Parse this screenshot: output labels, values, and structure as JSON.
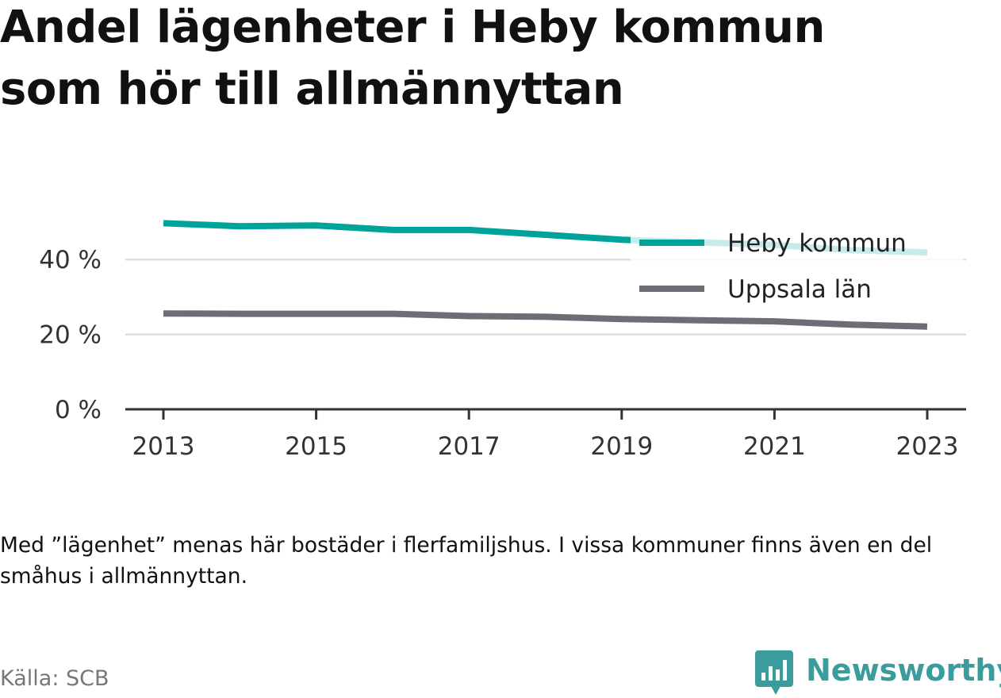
{
  "header": {
    "title_line1": "Andel lägenheter i Heby kommun",
    "title_line2": "som hör till allmännyttan"
  },
  "footer": {
    "note": "Med ”lägenhet” menas här bostäder i flerfamiljshus. I vissa kommuner finns även en del småhus i allmännyttan.",
    "source": "Källa: SCB",
    "brand": "Newsworthy",
    "brand_color": "#3a9c9c"
  },
  "chart_data": {
    "type": "line",
    "title": "Andel lägenheter i Heby kommun som hör till allmännyttan",
    "xlabel": "",
    "ylabel": "",
    "x": [
      2013,
      2014,
      2015,
      2016,
      2017,
      2018,
      2019,
      2020,
      2021,
      2022,
      2023
    ],
    "xticks": [
      2013,
      2015,
      2017,
      2019,
      2021,
      2023
    ],
    "xtick_labels": [
      "2013",
      "2015",
      "2017",
      "2019",
      "2021",
      "2023"
    ],
    "yticks": [
      0,
      20,
      40
    ],
    "ytick_labels": [
      "0 %",
      "20 %",
      "40 %"
    ],
    "xlim": [
      2012.5,
      2023.5
    ],
    "ylim": [
      0,
      50
    ],
    "grid": "horizontal",
    "legend_position": "top-right",
    "series": [
      {
        "name": "Heby kommun",
        "color": "#00a39a",
        "values": [
          49.7,
          48.9,
          49.1,
          47.9,
          47.9,
          46.6,
          45.3,
          44.6,
          43.9,
          42.5,
          41.9
        ]
      },
      {
        "name": "Uppsala län",
        "color": "#6d6d76",
        "values": [
          25.6,
          25.5,
          25.5,
          25.5,
          24.9,
          24.7,
          24.1,
          23.8,
          23.5,
          22.6,
          22.1
        ]
      }
    ]
  }
}
